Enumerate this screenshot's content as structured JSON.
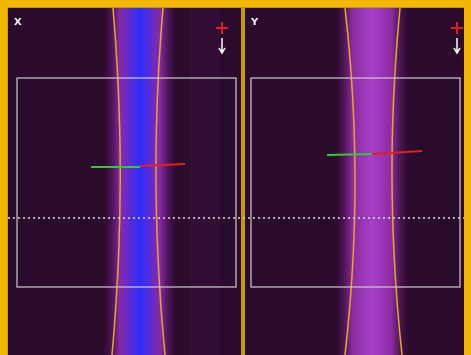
{
  "panels": [
    {
      "label": "X"
    },
    {
      "label": "Y"
    }
  ]
}
